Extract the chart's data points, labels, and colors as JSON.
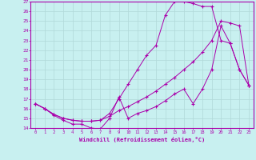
{
  "xlabel": "Windchill (Refroidissement éolien,°C)",
  "bg_color": "#c8f0f0",
  "line_color": "#aa00aa",
  "grid_color": "#b0d8d8",
  "xlim": [
    -0.5,
    23.5
  ],
  "ylim": [
    14,
    27
  ],
  "xticks": [
    0,
    1,
    2,
    3,
    4,
    5,
    6,
    7,
    8,
    9,
    10,
    11,
    12,
    13,
    14,
    15,
    16,
    17,
    18,
    19,
    20,
    21,
    22,
    23
  ],
  "yticks": [
    14,
    15,
    16,
    17,
    18,
    19,
    20,
    21,
    22,
    23,
    24,
    25,
    26,
    27
  ],
  "line1_x": [
    0,
    1,
    2,
    3,
    4,
    5,
    6,
    7,
    8,
    9,
    10,
    11,
    12,
    13,
    14,
    15,
    16,
    17,
    18,
    19,
    20,
    21,
    22,
    23
  ],
  "line1_y": [
    16.5,
    16.0,
    15.3,
    14.8,
    14.4,
    14.4,
    14.0,
    13.9,
    15.0,
    17.2,
    15.0,
    15.5,
    15.8,
    16.2,
    16.8,
    17.5,
    18.0,
    16.5,
    18.0,
    20.0,
    24.5,
    22.7,
    20.0,
    18.4
  ],
  "line2_x": [
    0,
    1,
    2,
    3,
    4,
    5,
    6,
    7,
    8,
    9,
    10,
    11,
    12,
    13,
    14,
    15,
    16,
    17,
    18,
    19,
    20,
    21,
    22,
    23
  ],
  "line2_y": [
    16.5,
    16.0,
    15.4,
    15.0,
    14.8,
    14.7,
    14.7,
    14.8,
    15.2,
    15.8,
    16.2,
    16.7,
    17.2,
    17.8,
    18.5,
    19.2,
    20.0,
    20.8,
    21.8,
    23.0,
    25.0,
    24.8,
    24.5,
    18.4
  ],
  "line3_x": [
    0,
    1,
    2,
    3,
    4,
    5,
    6,
    7,
    8,
    9,
    10,
    11,
    12,
    13,
    14,
    15,
    16,
    17,
    18,
    19,
    20,
    21,
    22,
    23
  ],
  "line3_y": [
    16.5,
    16.0,
    15.4,
    15.0,
    14.8,
    14.7,
    14.7,
    14.8,
    15.5,
    17.0,
    18.5,
    20.0,
    21.5,
    22.5,
    25.6,
    27.0,
    27.0,
    26.8,
    26.5,
    26.5,
    23.0,
    22.7,
    20.0,
    18.4
  ]
}
